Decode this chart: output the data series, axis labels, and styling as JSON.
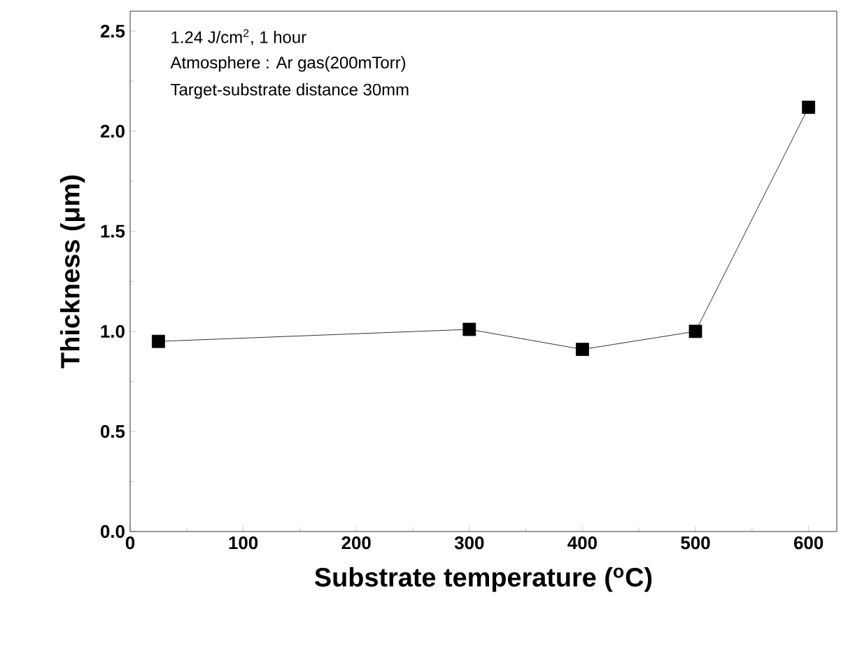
{
  "chart_data": {
    "type": "line",
    "xlabel": "Substrate temperature ($^{o}$C)",
    "ylabel": "Thickness (μm)",
    "annotations": [
      "1.24 J/cm$^{2}$, 1 hour",
      "Atmosphere : Ar gas(200mTorr)",
      "Target-substrate distance 30mm"
    ],
    "x": [
      25,
      300,
      400,
      500,
      600
    ],
    "values": [
      0.95,
      1.01,
      0.91,
      1.0,
      2.12
    ],
    "color": "#000000",
    "marker": "square",
    "line_style": "solid",
    "xlim": [
      0,
      625
    ],
    "ylim": [
      0,
      2.6
    ],
    "xticks": [
      0,
      100,
      200,
      300,
      400,
      500,
      600
    ],
    "yticks": [
      {
        "value": 0,
        "label": "0.0"
      },
      {
        "value": 0.5,
        "label": "0.5"
      },
      {
        "value": 1,
        "label": "1.0"
      },
      {
        "value": 1.5,
        "label": "1.5"
      },
      {
        "value": 2,
        "label": "2.0"
      },
      {
        "value": 2.5,
        "label": "2.5"
      }
    ],
    "grid": false
  }
}
